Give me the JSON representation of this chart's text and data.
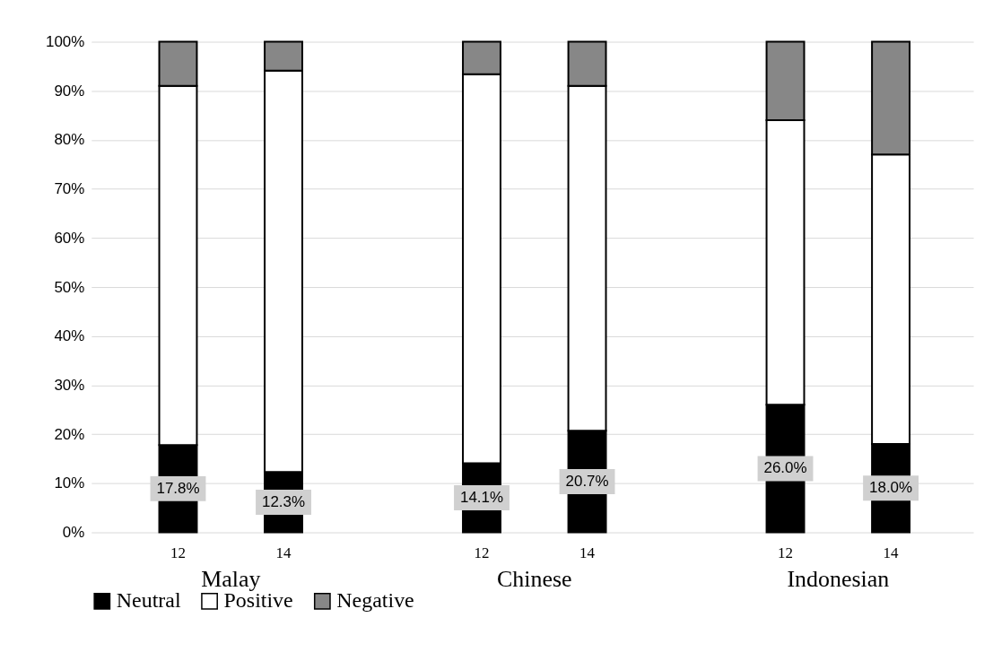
{
  "chart_data": {
    "type": "bar",
    "stacked": true,
    "categories": [
      "12",
      "14",
      "12",
      "14",
      "12",
      "14"
    ],
    "annotations": [
      "Malay",
      "Chinese",
      "Indonesian"
    ],
    "series": [
      {
        "name": "Neutral",
        "color": "#000000",
        "values": [
          17.8,
          12.3,
          14.1,
          20.7,
          26.0,
          18.0
        ],
        "value_labels": [
          "17.8%",
          "12.3%",
          "14.1%",
          "20.7%",
          "26.0%",
          "18.0%"
        ]
      },
      {
        "name": "Positive",
        "color": "#ffffff",
        "values": [
          73.2,
          81.8,
          79.3,
          70.3,
          58.0,
          59.0
        ]
      },
      {
        "name": "Negative",
        "color": "#878787",
        "values": [
          9.0,
          5.9,
          6.6,
          9.0,
          16.0,
          23.0
        ]
      }
    ],
    "ylim": [
      0,
      100
    ],
    "yticks": [
      {
        "value": 0,
        "label": "0%"
      },
      {
        "value": 10,
        "label": "10%"
      },
      {
        "value": 20,
        "label": "20%"
      },
      {
        "value": 30,
        "label": "30%"
      },
      {
        "value": 40,
        "label": "40%"
      },
      {
        "value": 50,
        "label": "50%"
      },
      {
        "value": 60,
        "label": "60%"
      },
      {
        "value": 70,
        "label": "70%"
      },
      {
        "value": 80,
        "label": "80%"
      },
      {
        "value": 90,
        "label": "90%"
      },
      {
        "value": 100,
        "label": "100%"
      }
    ],
    "grid": "y",
    "legend": "bottom"
  }
}
